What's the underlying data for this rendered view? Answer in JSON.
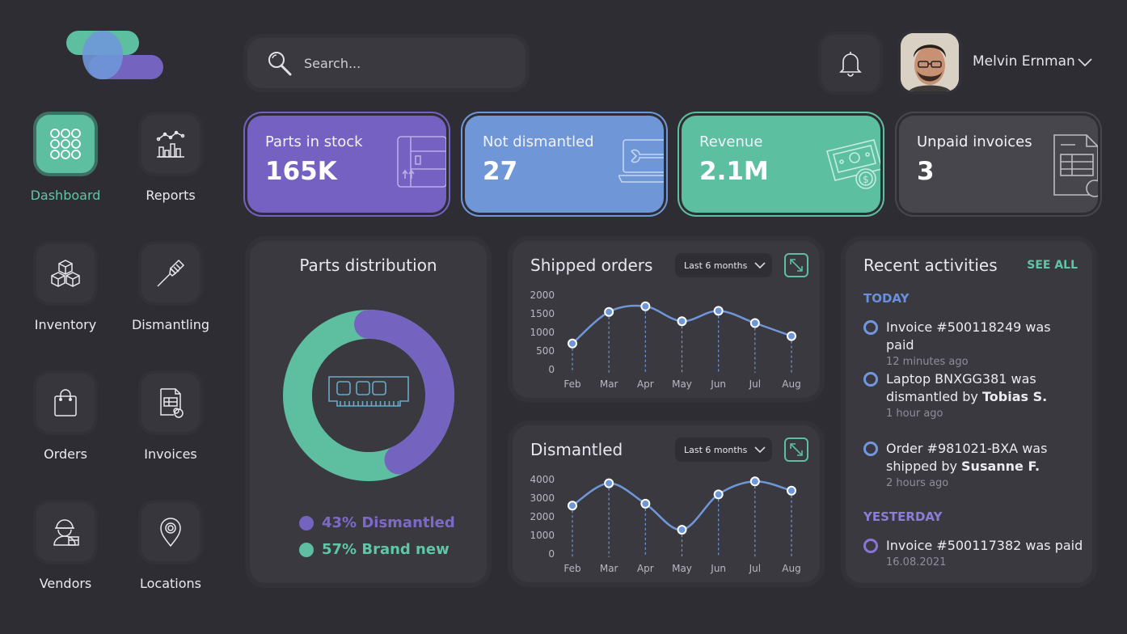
{
  "colors": {
    "accent_green": "#5dbea0",
    "accent_purple": "#7563c0",
    "accent_blue": "#6f97d8",
    "background": "#2e2d33"
  },
  "sidebar": {
    "items": [
      {
        "label": "Dashboard",
        "icon": "grid-icon",
        "active": true
      },
      {
        "label": "Reports",
        "icon": "chart-icon",
        "active": false
      },
      {
        "label": "Inventory",
        "icon": "boxes-icon",
        "active": false
      },
      {
        "label": "Dismantling",
        "icon": "screwdriver-icon",
        "active": false
      },
      {
        "label": "Orders",
        "icon": "bag-icon",
        "active": false
      },
      {
        "label": "Invoices",
        "icon": "invoice-icon",
        "active": false
      },
      {
        "label": "Vendors",
        "icon": "worker-icon",
        "active": false
      },
      {
        "label": "Locations",
        "icon": "location-pin-icon",
        "active": false
      }
    ]
  },
  "search": {
    "placeholder": "Search..."
  },
  "user": {
    "name": "Melvin Ernman"
  },
  "kpis": [
    {
      "label": "Parts in stock",
      "value": "165K",
      "color": "#7461c2",
      "icon": "box-icon"
    },
    {
      "label": "Not dismantled",
      "value": "27",
      "color": "#6f97d8",
      "icon": "laptop-wrench-icon"
    },
    {
      "label": "Revenue",
      "value": "2.1M",
      "color": "#5cbfa0",
      "icon": "money-icon"
    },
    {
      "label": "Unpaid invoices",
      "value": "3",
      "color": "#47464c",
      "icon": "invoice-icon"
    }
  ],
  "parts_distribution": {
    "title": "Parts distribution",
    "legend": [
      {
        "label": "43% Dismantled",
        "percent": 43,
        "color": "#7563c0"
      },
      {
        "label": "57% Brand new",
        "percent": 57,
        "color": "#5dbea0"
      }
    ]
  },
  "shipped_orders": {
    "title": "Shipped orders",
    "range": "Last 6 months"
  },
  "dismantled": {
    "title": "Dismantled",
    "range": "Last 6 months"
  },
  "chart_data": [
    {
      "type": "line",
      "title": "Shipped orders",
      "categories": [
        "Feb",
        "Mar",
        "Apr",
        "May",
        "Jun",
        "Jul",
        "Aug"
      ],
      "values": [
        700,
        1550,
        1700,
        1300,
        1580,
        1250,
        900
      ],
      "yticks": [
        0,
        500,
        1000,
        1500,
        2000
      ],
      "ylim": [
        0,
        2000
      ],
      "grid": false
    },
    {
      "type": "line",
      "title": "Dismantled",
      "categories": [
        "Feb",
        "Mar",
        "Apr",
        "May",
        "Jun",
        "Jul",
        "Aug"
      ],
      "values": [
        2600,
        3800,
        2700,
        1300,
        3200,
        3900,
        3400
      ],
      "yticks": [
        0,
        1000,
        2000,
        3000,
        4000
      ],
      "ylim": [
        0,
        4000
      ],
      "grid": false
    },
    {
      "type": "pie",
      "title": "Parts distribution",
      "categories": [
        "Dismantled",
        "Brand new"
      ],
      "values": [
        43,
        57
      ]
    }
  ],
  "activities": {
    "title": "Recent activities",
    "see_all": "SEE ALL",
    "today_label": "TODAY",
    "yesterday_label": "YESTERDAY",
    "items": [
      {
        "pre": "Invoice #500118249 was paid",
        "bold": "",
        "time": "12 minutes ago"
      },
      {
        "pre": "Laptop BNXGG381 was dismantled by ",
        "bold": "Tobias S.",
        "time": "1 hour ago"
      },
      {
        "pre": "Order #981021-BXA was shipped by ",
        "bold": "Susanne F.",
        "time": "2 hours ago"
      },
      {
        "pre": "Invoice #500117382 was paid",
        "bold": "",
        "time": "16.08.2021"
      }
    ]
  }
}
